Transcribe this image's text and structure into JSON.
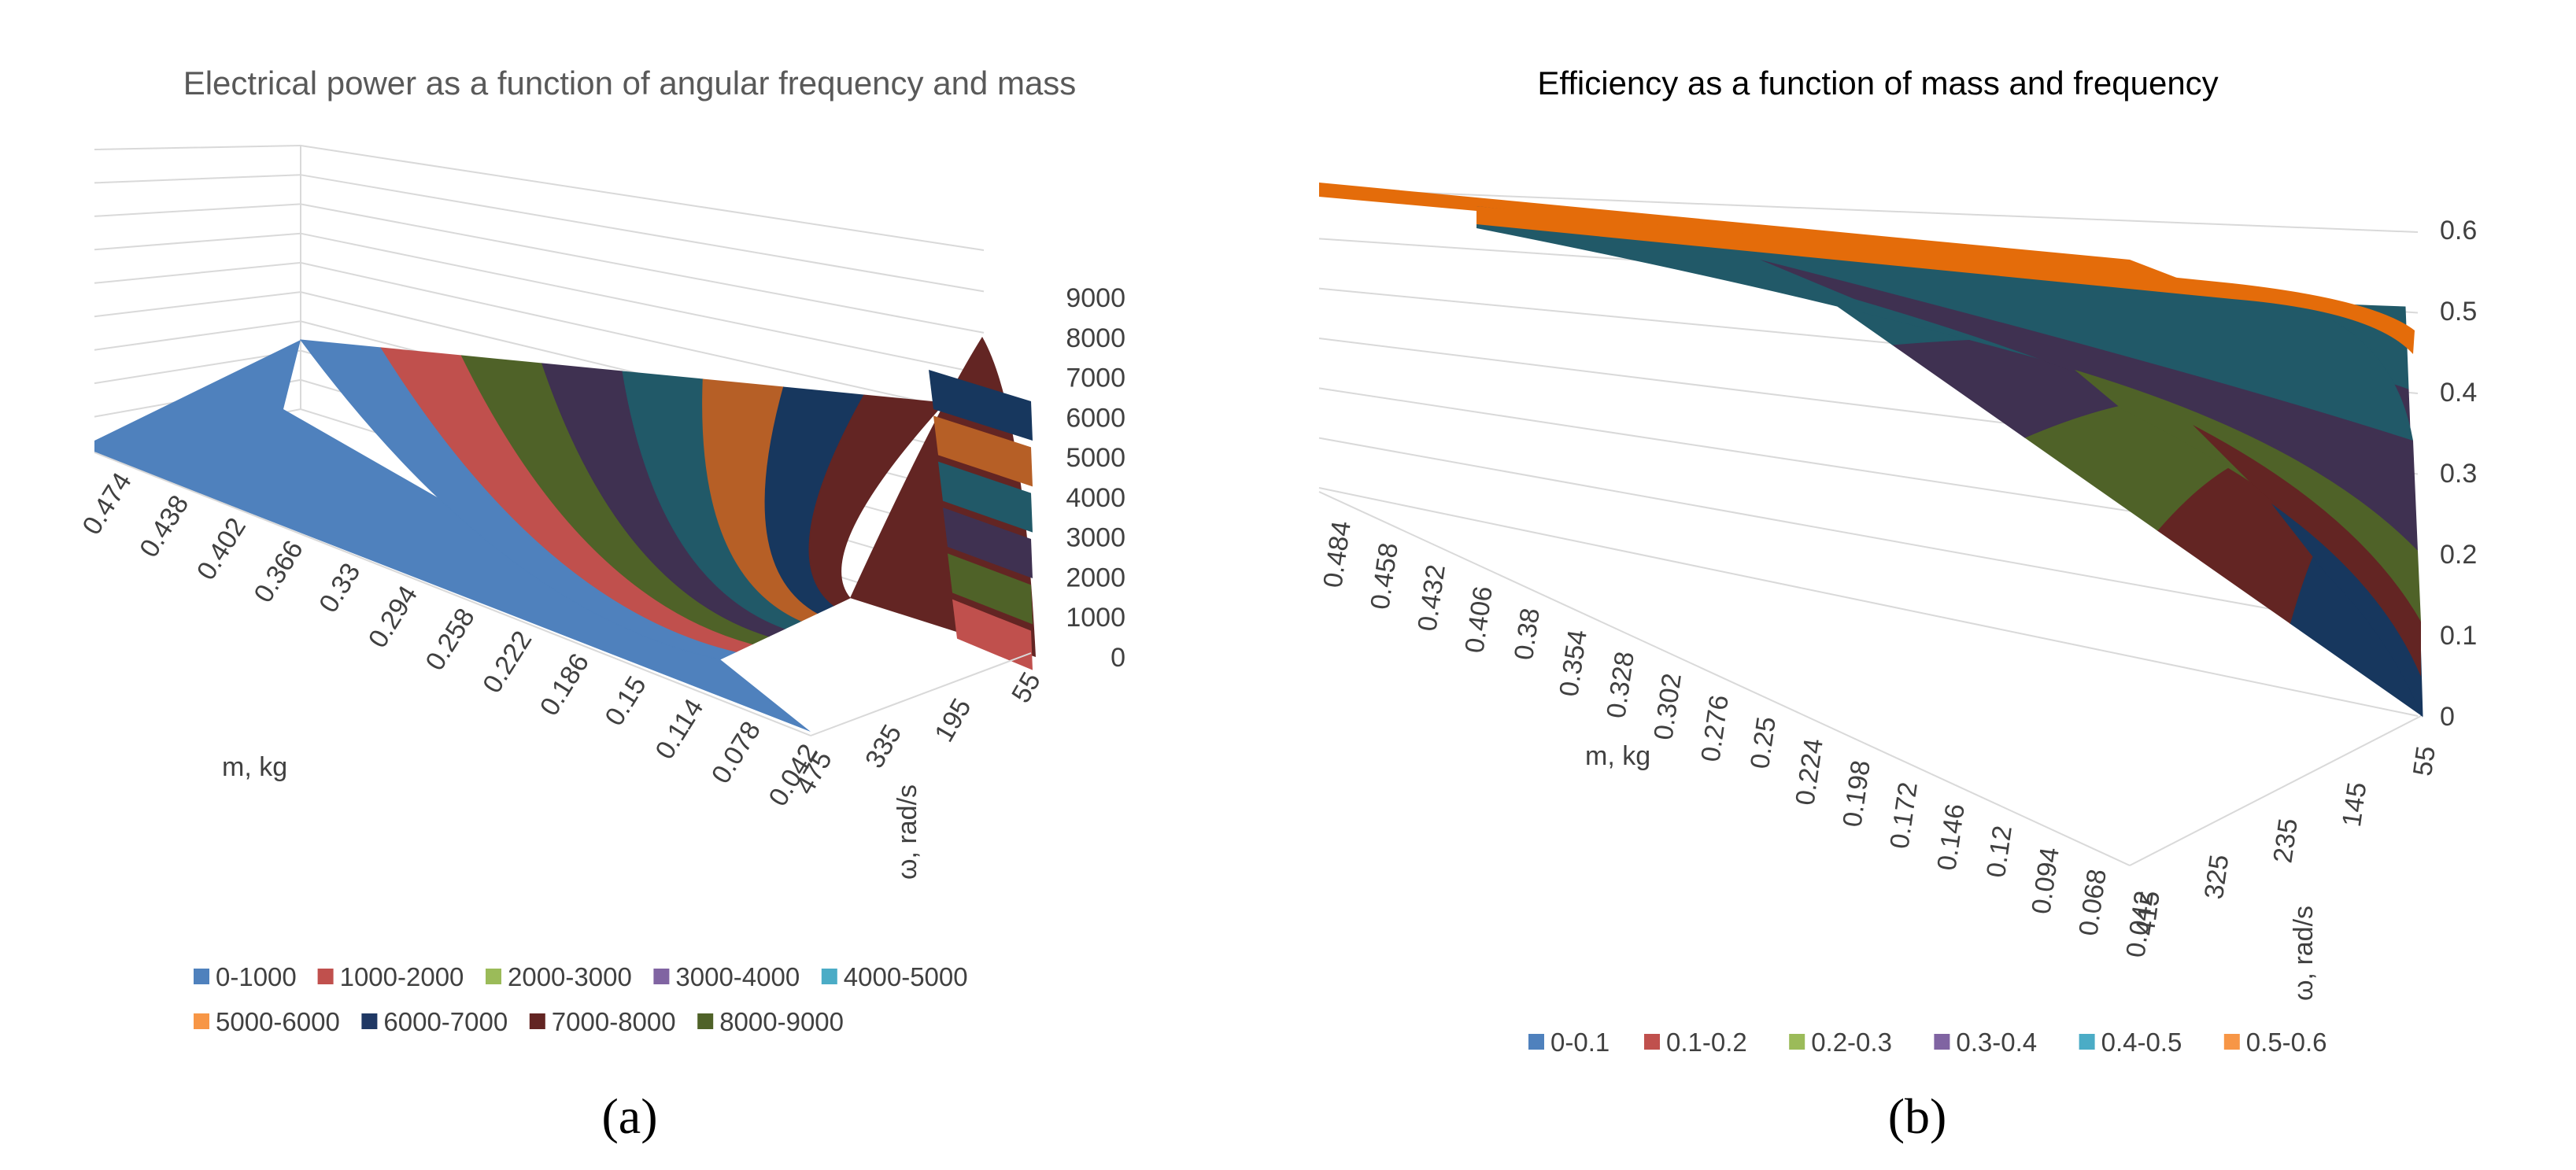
{
  "chart_data": [
    {
      "panel": "(a)",
      "type": "surface",
      "title": "Electrical power as a function of angular frequency and mass",
      "xlabel": "m, kg",
      "ylabel": "ω, rad/s",
      "zlabel": "",
      "x_ticks": [
        "0.474",
        "0.438",
        "0.402",
        "0.366",
        "0.33",
        "0.294",
        "0.258",
        "0.222",
        "0.186",
        "0.15",
        "0.114",
        "0.078",
        "0.042"
      ],
      "y_ticks": [
        "475",
        "335",
        "195",
        "55"
      ],
      "z_ticks": [
        "0",
        "1000",
        "2000",
        "3000",
        "4000",
        "5000",
        "6000",
        "7000",
        "8000",
        "9000"
      ],
      "zlim": [
        0,
        9000
      ],
      "legend": [
        {
          "label": "0-1000",
          "color": "#4f81bd"
        },
        {
          "label": "1000-2000",
          "color": "#c0504d"
        },
        {
          "label": "2000-3000",
          "color": "#9bbb59"
        },
        {
          "label": "3000-4000",
          "color": "#8064a2"
        },
        {
          "label": "4000-5000",
          "color": "#4bacc6"
        },
        {
          "label": "5000-6000",
          "color": "#f79646"
        },
        {
          "label": "6000-7000",
          "color": "#1f3864"
        },
        {
          "label": "7000-8000",
          "color": "#632523"
        },
        {
          "label": "8000-9000",
          "color": "#4f6228"
        }
      ],
      "bands": [
        {
          "label": "0-1000",
          "color": "#4f81bd"
        },
        {
          "label": "1000-2000",
          "color": "#c0504d"
        },
        {
          "label": "2000-3000",
          "color": "#4f6228"
        },
        {
          "label": "3000-4000",
          "color": "#3f3151"
        },
        {
          "label": "4000-5000",
          "color": "#215968"
        },
        {
          "label": "5000-6000",
          "color": "#b65f26"
        },
        {
          "label": "6000-7000",
          "color": "#17375e"
        },
        {
          "label": "7000-8000",
          "color": "#632523"
        }
      ]
    },
    {
      "panel": "(b)",
      "type": "surface",
      "title": "Efficiency as a function of mass and frequency",
      "xlabel": "m, kg",
      "ylabel": "ω, rad/s",
      "zlabel": "",
      "x_ticks": [
        "0.484",
        "0.458",
        "0.432",
        "0.406",
        "0.38",
        "0.354",
        "0.328",
        "0.302",
        "0.276",
        "0.25",
        "0.224",
        "0.198",
        "0.172",
        "0.146",
        "0.12",
        "0.094",
        "0.068",
        "0.042"
      ],
      "y_ticks": [
        "415",
        "325",
        "235",
        "145",
        "55"
      ],
      "z_ticks": [
        "0",
        "0.1",
        "0.2",
        "0.3",
        "0.4",
        "0.5",
        "0.6"
      ],
      "zlim": [
        0,
        0.6
      ],
      "legend": [
        {
          "label": "0-0.1",
          "color": "#4f81bd"
        },
        {
          "label": "0.1-0.2",
          "color": "#c0504d"
        },
        {
          "label": "0.2-0.3",
          "color": "#9bbb59"
        },
        {
          "label": "0.3-0.4",
          "color": "#8064a2"
        },
        {
          "label": "0.4-0.5",
          "color": "#4bacc6"
        },
        {
          "label": "0.5-0.6",
          "color": "#f79646"
        }
      ],
      "bands": [
        {
          "label": "0-0.1",
          "color": "#17375e"
        },
        {
          "label": "0.1-0.2",
          "color": "#632523"
        },
        {
          "label": "0.2-0.3",
          "color": "#4f6228"
        },
        {
          "label": "0.3-0.4",
          "color": "#3f3151"
        },
        {
          "label": "0.4-0.5",
          "color": "#215968"
        },
        {
          "label": "0.5-0.6",
          "color": "#e46c0a"
        }
      ]
    }
  ],
  "captions": {
    "a": "(a)",
    "b": "(b)"
  }
}
